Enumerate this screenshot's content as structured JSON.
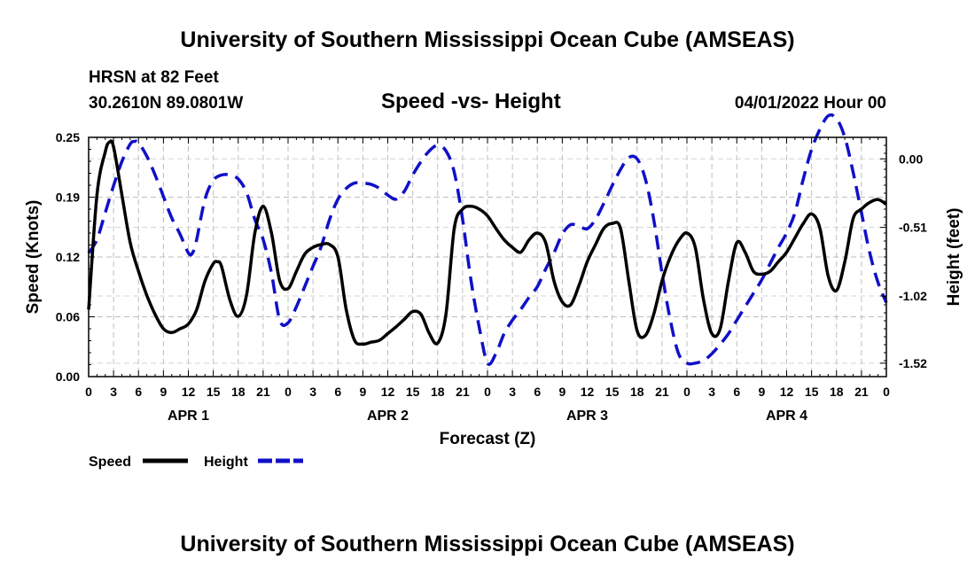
{
  "page": {
    "title": "University of Southern Mississippi Ocean Cube (AMSEAS)",
    "footer_title": "University of Southern Mississippi Ocean Cube (AMSEAS)",
    "station": "HRSN at 82 Feet",
    "coords": "30.2610N  89.0801W",
    "subtitle": "Speed -vs- Height",
    "datetime": "04/01/2022 Hour 00"
  },
  "chart_data": {
    "type": "line",
    "title": "Speed -vs- Height",
    "xlabel": "Forecast (Z)",
    "ylabel": "Speed (Knots)",
    "y2label": "Height (feet)",
    "xlim": [
      0,
      96
    ],
    "ylim": [
      0,
      0.25
    ],
    "y2lim": [
      -1.62,
      0.16
    ],
    "x_tick_values": [
      0,
      3,
      6,
      9,
      12,
      15,
      18,
      21,
      24,
      27,
      30,
      33,
      36,
      39,
      42,
      45,
      48,
      51,
      54,
      57,
      60,
      63,
      66,
      69,
      72,
      75,
      78,
      81,
      84,
      87,
      90,
      93,
      96
    ],
    "x_tick_labels": [
      "0",
      "3",
      "6",
      "9",
      "12",
      "15",
      "18",
      "21",
      "0",
      "3",
      "6",
      "9",
      "12",
      "15",
      "18",
      "21",
      "0",
      "3",
      "6",
      "9",
      "12",
      "15",
      "18",
      "21",
      "0",
      "3",
      "6",
      "9",
      "12",
      "15",
      "18",
      "21",
      "0"
    ],
    "y_tick_values": [
      0,
      0.0625,
      0.125,
      0.1875,
      0.25
    ],
    "y_tick_labels": [
      "0.00",
      "0.06",
      "0.12",
      "0.19",
      "0.25"
    ],
    "y2_tick_values": [
      0.0,
      -0.51,
      -1.02,
      -1.52
    ],
    "y2_tick_labels": [
      "0.00",
      "-0.51",
      "-1.02",
      "-1.52"
    ],
    "day_labels": [
      {
        "label": "APR 1",
        "x": 12
      },
      {
        "label": "APR 2",
        "x": 36
      },
      {
        "label": "APR 3",
        "x": 60
      },
      {
        "label": "APR 4",
        "x": 84
      }
    ],
    "grid": true,
    "legend": [
      {
        "name": "Speed",
        "color": "#000000",
        "dash": "solid"
      },
      {
        "name": "Height",
        "color": "#1010c8",
        "dash": "dashed"
      }
    ],
    "series": [
      {
        "name": "Speed",
        "axis": "left",
        "color": "#000000",
        "x": [
          0,
          1,
          2,
          2.5,
          3,
          4,
          5,
          6,
          7,
          8,
          9,
          10,
          11,
          12,
          13,
          14,
          15,
          15.5,
          16,
          17,
          18,
          19,
          20,
          21,
          22,
          23,
          24,
          25,
          26,
          27,
          28,
          29,
          30,
          31,
          32,
          33,
          34,
          35,
          36,
          37,
          38,
          39,
          40,
          41,
          42,
          43,
          44,
          45,
          46,
          47,
          48,
          49,
          50,
          51,
          52,
          53,
          54,
          55,
          56,
          57,
          58,
          59,
          60,
          61,
          62,
          63,
          64,
          65,
          66,
          67,
          68,
          69,
          70,
          71,
          72,
          73,
          74,
          75,
          76,
          77,
          78,
          79,
          80,
          81,
          82,
          83,
          84,
          85,
          86,
          87,
          88,
          89,
          90,
          91,
          92,
          93,
          94,
          95,
          96
        ],
        "values": [
          0.07,
          0.19,
          0.235,
          0.245,
          0.24,
          0.19,
          0.14,
          0.11,
          0.085,
          0.065,
          0.05,
          0.046,
          0.05,
          0.055,
          0.07,
          0.1,
          0.118,
          0.12,
          0.115,
          0.08,
          0.063,
          0.085,
          0.15,
          0.178,
          0.15,
          0.1,
          0.092,
          0.11,
          0.128,
          0.135,
          0.138,
          0.138,
          0.125,
          0.07,
          0.038,
          0.034,
          0.036,
          0.038,
          0.045,
          0.052,
          0.06,
          0.068,
          0.065,
          0.045,
          0.035,
          0.065,
          0.155,
          0.175,
          0.178,
          0.175,
          0.168,
          0.155,
          0.143,
          0.135,
          0.13,
          0.143,
          0.15,
          0.14,
          0.1,
          0.078,
          0.075,
          0.095,
          0.12,
          0.138,
          0.155,
          0.16,
          0.155,
          0.1,
          0.048,
          0.043,
          0.065,
          0.1,
          0.125,
          0.142,
          0.15,
          0.135,
          0.08,
          0.045,
          0.05,
          0.1,
          0.14,
          0.13,
          0.11,
          0.107,
          0.11,
          0.12,
          0.13,
          0.145,
          0.16,
          0.17,
          0.155,
          0.105,
          0.09,
          0.12,
          0.165,
          0.175,
          0.182,
          0.185,
          0.18
        ]
      },
      {
        "name": "Height",
        "axis": "right",
        "color": "#1010c8",
        "x": [
          0,
          1,
          2,
          3,
          4,
          5,
          5.5,
          6,
          7,
          8,
          9,
          10,
          11,
          12,
          12.5,
          13,
          14,
          15,
          16,
          17,
          18,
          19,
          20,
          21,
          22,
          23,
          24,
          25,
          26,
          27,
          28,
          29,
          30,
          31,
          32,
          33,
          34,
          35,
          36,
          37,
          38,
          39,
          40,
          41,
          42,
          43,
          44,
          45,
          46,
          47,
          48,
          49,
          50,
          51,
          52,
          53,
          54,
          55,
          56,
          57,
          58,
          59,
          60,
          61,
          62,
          63,
          64,
          65,
          66,
          67,
          68,
          69,
          70,
          71,
          72,
          73,
          74,
          75,
          76,
          77,
          78,
          79,
          80,
          81,
          82,
          83,
          84,
          85,
          86,
          87,
          88,
          89,
          90,
          91,
          92,
          93,
          94,
          95,
          96
        ],
        "values": [
          -0.7,
          -0.6,
          -0.4,
          -0.2,
          -0.02,
          0.11,
          0.13,
          0.12,
          0.02,
          -0.12,
          -0.28,
          -0.44,
          -0.56,
          -0.7,
          -0.7,
          -0.6,
          -0.3,
          -0.16,
          -0.12,
          -0.12,
          -0.15,
          -0.25,
          -0.45,
          -0.6,
          -0.85,
          -1.2,
          -1.22,
          -1.1,
          -0.95,
          -0.8,
          -0.65,
          -0.45,
          -0.3,
          -0.22,
          -0.18,
          -0.18,
          -0.19,
          -0.22,
          -0.27,
          -0.3,
          -0.24,
          -0.12,
          -0.02,
          0.06,
          0.1,
          0.06,
          -0.1,
          -0.45,
          -0.9,
          -1.25,
          -1.52,
          -1.45,
          -1.3,
          -1.2,
          -1.12,
          -1.03,
          -0.95,
          -0.82,
          -0.7,
          -0.56,
          -0.49,
          -0.5,
          -0.52,
          -0.45,
          -0.33,
          -0.2,
          -0.08,
          0.01,
          0.0,
          -0.15,
          -0.45,
          -0.85,
          -1.2,
          -1.45,
          -1.52,
          -1.52,
          -1.5,
          -1.45,
          -1.38,
          -1.3,
          -1.2,
          -1.1,
          -1.0,
          -0.9,
          -0.78,
          -0.66,
          -0.55,
          -0.4,
          -0.15,
          0.07,
          0.22,
          0.32,
          0.3,
          0.16,
          -0.1,
          -0.4,
          -0.7,
          -0.92,
          -1.07
        ]
      }
    ]
  }
}
